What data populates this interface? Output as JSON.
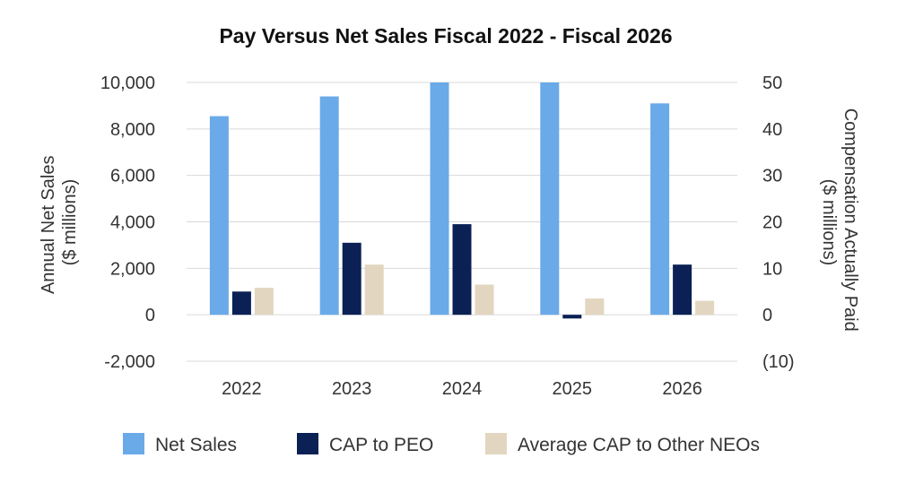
{
  "chart_data": {
    "type": "bar",
    "title": "Pay Versus Net Sales Fiscal 2022 - Fiscal 2026",
    "categories": [
      "2022",
      "2023",
      "2024",
      "2025",
      "2026"
    ],
    "left_axis": {
      "label_lines": [
        "Annual Net Sales",
        "($ millions)"
      ],
      "range": [
        -2000,
        10000
      ],
      "ticks": [
        -2000,
        0,
        2000,
        4000,
        6000,
        8000,
        10000
      ],
      "tick_labels": [
        "-2,000",
        "0",
        "2,000",
        "4,000",
        "6,000",
        "8,000",
        "10,000"
      ]
    },
    "right_axis": {
      "label_lines": [
        "Compensation Actually Paid",
        "($ millions)"
      ],
      "range": [
        -10,
        50
      ],
      "ticks": [
        -10,
        0,
        10,
        20,
        30,
        40,
        50
      ],
      "tick_labels": [
        "(10)",
        "0",
        "10",
        "20",
        "30",
        "40",
        "50"
      ]
    },
    "series": [
      {
        "name": "Net Sales",
        "axis": "left",
        "color": "#6aaae8",
        "values": [
          8550,
          9400,
          10000,
          10000,
          9100
        ]
      },
      {
        "name": "CAP to PEO",
        "axis": "right",
        "color": "#0b2155",
        "values": [
          5,
          15.5,
          19.5,
          -0.8,
          10.8
        ]
      },
      {
        "name": "Average CAP to Other NEOs",
        "axis": "right",
        "color": "#e3d6c0",
        "values": [
          5.8,
          10.8,
          6.5,
          3.5,
          3
        ]
      }
    ],
    "grid": "horizontal",
    "legend_position": "bottom"
  }
}
